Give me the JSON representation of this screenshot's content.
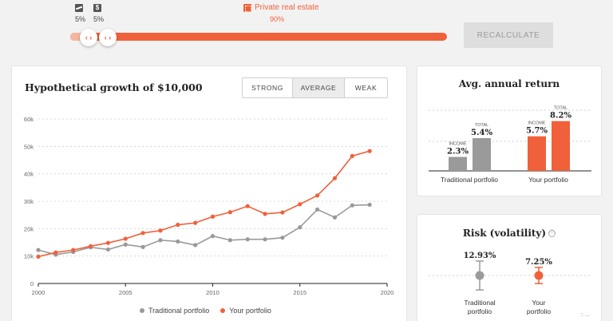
{
  "allocation": {
    "assets": [
      {
        "icon": "trend-chart-icon",
        "percent": "5%"
      },
      {
        "icon": "dollar-icon",
        "percent": "5%"
      }
    ],
    "private_real_estate": {
      "label": "Private real estate",
      "percent": "90%",
      "icon": "building-icon"
    },
    "slider_handles": [
      "‹ ›",
      "‹ ›"
    ],
    "recalculate_label": "RECALCULATE"
  },
  "growth": {
    "title": "Hypothetical growth of $10,000",
    "scenarios": [
      "STRONG",
      "AVERAGE",
      "WEAK"
    ],
    "selected_scenario": "AVERAGE",
    "legend": [
      "Traditional portfolio",
      "Your portfolio"
    ]
  },
  "chart_data": {
    "type": "line",
    "x": [
      2000,
      2001,
      2002,
      2003,
      2004,
      2005,
      2006,
      2007,
      2008,
      2009,
      2010,
      2011,
      2012,
      2013,
      2014,
      2015,
      2016,
      2017,
      2018,
      2019
    ],
    "series": [
      {
        "name": "Traditional portfolio",
        "color": "#999999",
        "values": [
          12200,
          10500,
          11500,
          13200,
          12400,
          14200,
          13300,
          15800,
          15300,
          14000,
          17300,
          15800,
          16100,
          16100,
          16700,
          20500,
          27000,
          24100,
          28500,
          28700
        ]
      },
      {
        "name": "Your portfolio",
        "color": "#f0603a",
        "values": [
          9800,
          11300,
          12200,
          13600,
          14800,
          16300,
          18400,
          19300,
          21400,
          22100,
          24400,
          26000,
          28200,
          25400,
          25900,
          28900,
          32100,
          38400,
          46500,
          48300
        ]
      }
    ],
    "title": "",
    "xlabel": "",
    "ylabel": "",
    "x_ticks": [
      "2000",
      "2005",
      "2010",
      "2015",
      "2020"
    ],
    "y_ticks": [
      "0",
      "10k",
      "20k",
      "30k",
      "40k",
      "50k",
      "60k"
    ],
    "xlim": [
      2000,
      2020
    ],
    "ylim": [
      0,
      60000
    ],
    "grid": true,
    "legend_position": "bottom"
  },
  "avg_return": {
    "title": "Avg. annual return",
    "groups": [
      {
        "label": "Traditional portfolio",
        "income_label": "INCOME",
        "income": "2.3%",
        "income_value": 2.3,
        "total_label": "TOTAL",
        "total": "5.4%",
        "total_value": 5.4,
        "income_color": "#9a9a9a",
        "total_color": "#9a9a9a"
      },
      {
        "label": "Your portfolio",
        "income_label": "INCOME",
        "income": "5.7%",
        "income_value": 5.7,
        "total_label": "TOTAL",
        "total": "8.2%",
        "total_value": 8.2,
        "income_color": "#f0603a",
        "total_color": "#f0603a"
      }
    ]
  },
  "risk": {
    "title": "Risk (volatility)",
    "info_icon": "ⓘ",
    "items": [
      {
        "value": "12.93%",
        "label_line1": "Traditional",
        "label_line2": "portfolio",
        "color": "#9a9a9a",
        "volatility": 12.93
      },
      {
        "value": "7.25%",
        "label_line1": "Your",
        "label_line2": "portfolio",
        "color": "#f0603a",
        "volatility": 7.25
      }
    ]
  },
  "footer": {
    "cookie_text": ":: ..."
  }
}
